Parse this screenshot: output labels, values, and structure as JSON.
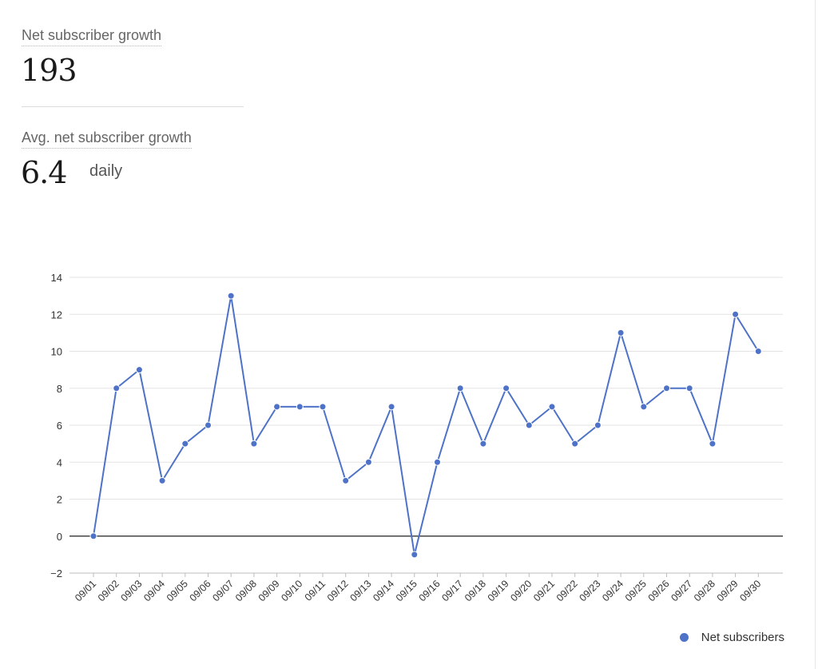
{
  "summary": {
    "net_growth_label": "Net subscriber growth",
    "net_growth_value": "193",
    "avg_growth_label": "Avg. net subscriber growth",
    "avg_growth_value": "6.4",
    "avg_growth_unit": "daily"
  },
  "colors": {
    "series": "#4e72c8",
    "grid": "#e3e3e3",
    "zero_line": "#222222",
    "axis_text": "#333333"
  },
  "chart_data": {
    "type": "line",
    "x": [
      "09/01",
      "09/02",
      "09/03",
      "09/04",
      "09/05",
      "09/06",
      "09/07",
      "09/08",
      "09/09",
      "09/10",
      "09/11",
      "09/12",
      "09/13",
      "09/14",
      "09/15",
      "09/16",
      "09/17",
      "09/18",
      "09/19",
      "09/20",
      "09/21",
      "09/22",
      "09/23",
      "09/24",
      "09/25",
      "09/26",
      "09/27",
      "09/28",
      "09/29",
      "09/30"
    ],
    "series": [
      {
        "name": "Net subscribers",
        "values": [
          0,
          8,
          9,
          3,
          5,
          6,
          13,
          5,
          7,
          7,
          7,
          3,
          4,
          7,
          -1,
          4,
          8,
          5,
          8,
          6,
          7,
          5,
          6,
          11,
          7,
          8,
          8,
          5,
          12,
          10
        ]
      }
    ],
    "y_ticks": [
      14,
      12,
      10,
      8,
      6,
      4,
      2,
      0,
      -2
    ],
    "y_tick_labels": [
      "14",
      "12",
      "10",
      "8",
      "6",
      "4",
      "2",
      "0",
      "−2"
    ],
    "ylim": [
      -2,
      14
    ],
    "grid": true,
    "legend_position": "bottom-right",
    "title": "",
    "xlabel": "",
    "ylabel": ""
  }
}
